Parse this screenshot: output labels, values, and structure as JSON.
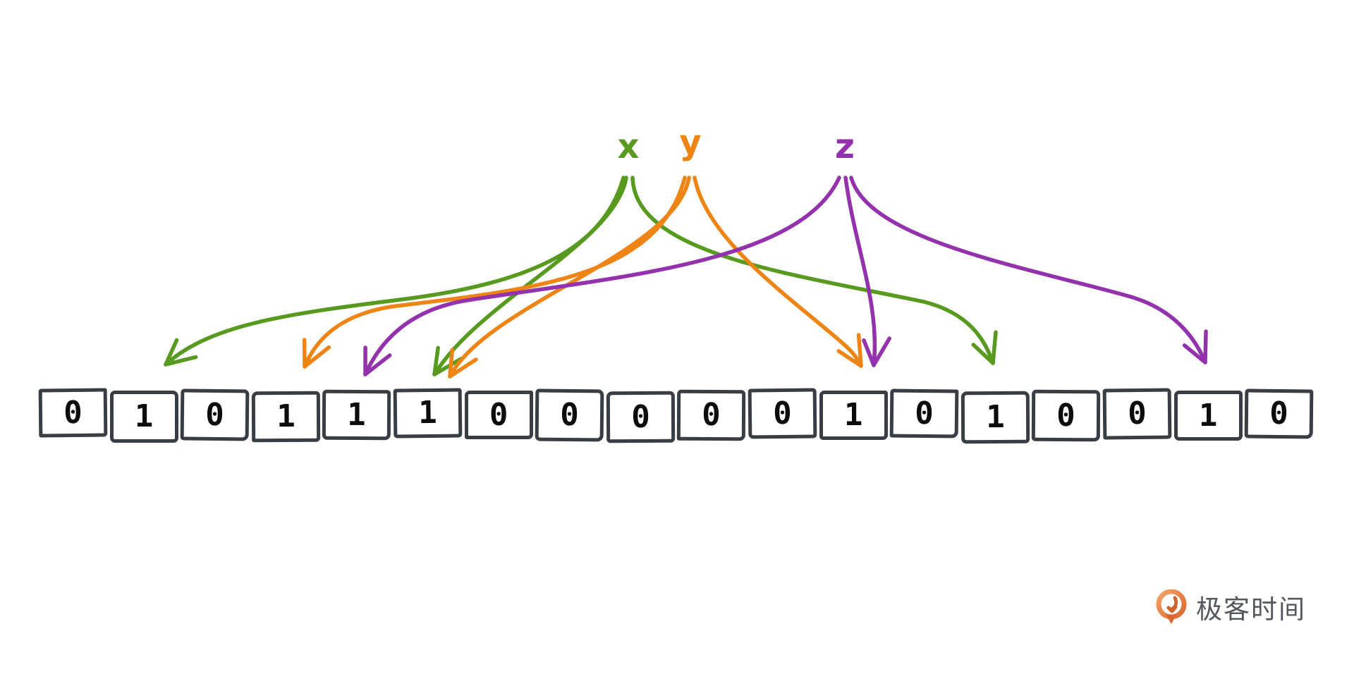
{
  "diagram": {
    "title_semantic": "bloom-filter-hash-diagram",
    "background_color": "#ffffff",
    "labels": [
      {
        "id": "x",
        "text": "x",
        "color": "#579a1f"
      },
      {
        "id": "y",
        "text": "y",
        "color": "#ee8413"
      },
      {
        "id": "z",
        "text": "z",
        "color": "#9431ac"
      }
    ],
    "bit_array": {
      "cells": [
        "0",
        "1",
        "0",
        "1",
        "1",
        "1",
        "0",
        "0",
        "0",
        "0",
        "0",
        "1",
        "0",
        "1",
        "0",
        "0",
        "1",
        "0"
      ],
      "cell_count": 18,
      "border_color": "#383e44",
      "digit_color": "#0c0c0c",
      "fill_color": "#ffffff"
    },
    "arrows": [
      {
        "from": "x",
        "to_cell": 1
      },
      {
        "from": "x",
        "to_cell": 5
      },
      {
        "from": "x",
        "to_cell": 13
      },
      {
        "from": "y",
        "to_cell": 3
      },
      {
        "from": "y",
        "to_cell": 5
      },
      {
        "from": "y",
        "to_cell": 11
      },
      {
        "from": "z",
        "to_cell": 4
      },
      {
        "from": "z",
        "to_cell": 11
      },
      {
        "from": "z",
        "to_cell": 16
      }
    ],
    "watermark": {
      "text": "极客时间",
      "text_color": "#54585d",
      "icon_color_dark": "#d9652f",
      "icon_color_light": "#f2a469"
    }
  }
}
